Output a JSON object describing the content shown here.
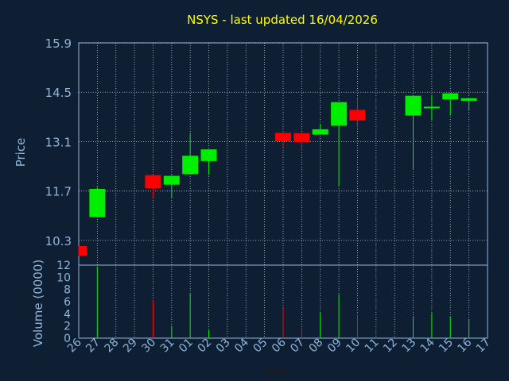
{
  "chart_data": {
    "type": "candlestick",
    "title": "NSYS - last updated 16/04/2026",
    "xlabel": "Day",
    "ylabel": "Price",
    "volume_label": "Volume (0000)",
    "grid": true,
    "colors": {
      "background": "#0f1f33",
      "title": "#ffff00",
      "axis_text": "#8fb4d9",
      "up": "#00ee00",
      "down": "#ff0000",
      "grid": "#ffffff"
    },
    "price_axis": {
      "min": 9.6,
      "max": 15.9,
      "ticks": [
        10.3,
        11.7,
        13.1,
        14.5,
        15.9
      ]
    },
    "volume_axis": {
      "min": 0,
      "max": 12,
      "ticks": [
        0,
        2,
        4,
        6,
        8,
        10,
        12
      ]
    },
    "days": [
      "26",
      "27",
      "28",
      "29",
      "30",
      "31",
      "01",
      "02",
      "03",
      "04",
      "05",
      "06",
      "07",
      "08",
      "09",
      "10",
      "11",
      "12",
      "13",
      "14",
      "15",
      "16",
      "17"
    ],
    "candles": [
      {
        "day": "26",
        "open": 10.14,
        "high": 10.14,
        "low": 9.86,
        "close": 9.86
      },
      {
        "day": "27",
        "open": 10.96,
        "high": 11.81,
        "low": 10.96,
        "close": 11.76
      },
      {
        "day": "30",
        "open": 12.15,
        "high": 12.15,
        "low": 11.52,
        "close": 11.78
      },
      {
        "day": "31",
        "open": 11.88,
        "high": 12.15,
        "low": 11.5,
        "close": 12.13
      },
      {
        "day": "01",
        "open": 12.18,
        "high": 13.35,
        "low": 12.18,
        "close": 12.7
      },
      {
        "day": "02",
        "open": 12.55,
        "high": 12.88,
        "low": 12.15,
        "close": 12.88
      },
      {
        "day": "06",
        "open": 13.35,
        "high": 13.35,
        "low": 12.93,
        "close": 13.11
      },
      {
        "day": "07",
        "open": 13.34,
        "high": 13.34,
        "low": 12.84,
        "close": 13.09
      },
      {
        "day": "08",
        "open": 13.3,
        "high": 13.6,
        "low": 13.3,
        "close": 13.45
      },
      {
        "day": "09",
        "open": 13.55,
        "high": 14.22,
        "low": 11.83,
        "close": 14.22
      },
      {
        "day": "10",
        "open": 14.0,
        "high": 14.32,
        "low": 13.5,
        "close": 13.7
      },
      {
        "day": "13",
        "open": 13.84,
        "high": 14.4,
        "low": 12.3,
        "close": 14.4
      },
      {
        "day": "14",
        "open": 14.05,
        "high": 14.42,
        "low": 13.7,
        "close": 14.09
      },
      {
        "day": "15",
        "open": 14.3,
        "high": 14.47,
        "low": 13.84,
        "close": 14.47
      },
      {
        "day": "16",
        "open": 14.26,
        "high": 14.33,
        "low": 13.97,
        "close": 14.33
      }
    ],
    "volume": [
      {
        "day": "26",
        "value": 0.05,
        "dir": "down"
      },
      {
        "day": "27",
        "value": 11.8,
        "dir": "up"
      },
      {
        "day": "30",
        "value": 6.2,
        "dir": "down"
      },
      {
        "day": "31",
        "value": 2.0,
        "dir": "up"
      },
      {
        "day": "01",
        "value": 7.4,
        "dir": "up"
      },
      {
        "day": "02",
        "value": 1.3,
        "dir": "up"
      },
      {
        "day": "06",
        "value": 5.0,
        "dir": "down"
      },
      {
        "day": "07",
        "value": 1.3,
        "dir": "down"
      },
      {
        "day": "08",
        "value": 4.3,
        "dir": "up"
      },
      {
        "day": "09",
        "value": 7.2,
        "dir": "up"
      },
      {
        "day": "10",
        "value": 3.9,
        "dir": "down"
      },
      {
        "day": "13",
        "value": 3.6,
        "dir": "up"
      },
      {
        "day": "14",
        "value": 4.1,
        "dir": "up"
      },
      {
        "day": "15",
        "value": 3.6,
        "dir": "up"
      },
      {
        "day": "16",
        "value": 3.1,
        "dir": "up"
      }
    ]
  }
}
